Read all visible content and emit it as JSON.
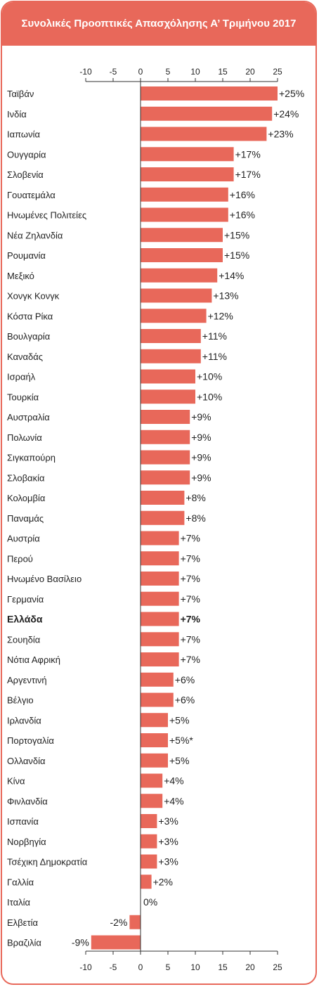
{
  "header": {
    "title": "Συνολικές Προοπτικές Απασχόλησης Α’ Τριμήνου 2017"
  },
  "colors": {
    "accent": "#e8685a",
    "bar": "#e8685a",
    "text": "#222222",
    "axis": "#333333"
  },
  "chart_data": {
    "type": "bar",
    "orientation": "horizontal",
    "title": "Συνολικές Προοπτικές Απασχόλησης Α’ Τριμήνου 2017",
    "xlim": [
      -10,
      25
    ],
    "ticks": [
      -10,
      -5,
      0,
      5,
      10,
      15,
      20,
      25
    ],
    "ticks_shown": "top-and-bottom",
    "grid": false,
    "highlight": "Ελλάδα",
    "categories": [
      "Ταϊβάν",
      "Ινδία",
      "Ιαπωνία",
      "Ουγγαρία",
      "Σλοβενία",
      "Γουατεμάλα",
      "Ηνωμένες Πολιτείες",
      "Νέα Ζηλανδία",
      "Ρουμανία",
      "Μεξικό",
      "Χονγκ Κονγκ",
      "Κόστα Ρίκα",
      "Βουλγαρία",
      "Καναδάς",
      "Ισραήλ",
      "Τουρκία",
      "Αυστραλία",
      "Πολωνία",
      "Σιγκαπούρη",
      "Σλοβακία",
      "Κολομβία",
      "Παναμάς",
      "Αυστρία",
      "Περού",
      "Ηνωμένο Βασίλειο",
      "Γερμανία",
      "Ελλάδα",
      "Σουηδία",
      "Νότια Αφρική",
      "Αργεντινή",
      "Βέλγιο",
      "Ιρλανδία",
      "Πορτογαλία",
      "Ολλανδία",
      "Κίνα",
      "Φινλανδία",
      "Ισπανία",
      "Νορβηγία",
      "Τσέχικη Δημοκρατία",
      "Γαλλία",
      "Ιταλία",
      "Ελβετία",
      "Βραζιλία"
    ],
    "values": [
      25,
      24,
      23,
      17,
      17,
      16,
      16,
      15,
      15,
      14,
      13,
      12,
      11,
      11,
      10,
      10,
      9,
      9,
      9,
      9,
      8,
      8,
      7,
      7,
      7,
      7,
      7,
      7,
      7,
      6,
      6,
      5,
      5,
      5,
      4,
      4,
      3,
      3,
      3,
      2,
      0,
      -2,
      -9
    ],
    "value_labels": [
      "+25%",
      "+24%",
      "+23%",
      "+17%",
      "+17%",
      "+16%",
      "+16%",
      "+15%",
      "+15%",
      "+14%",
      "+13%",
      "+12%",
      "+11%",
      "+11%",
      "+10%",
      "+10%",
      "+9%",
      "+9%",
      "+9%",
      "+9%",
      "+8%",
      "+8%",
      "+7%",
      "+7%",
      "+7%",
      "+7%",
      "+7%",
      "+7%",
      "+7%",
      "+6%",
      "+6%",
      "+5%",
      "+5%*",
      "+5%",
      "+4%",
      "+4%",
      "+3%",
      "+3%",
      "+3%",
      "+2%",
      "0%",
      "-2%",
      "-9%"
    ]
  }
}
